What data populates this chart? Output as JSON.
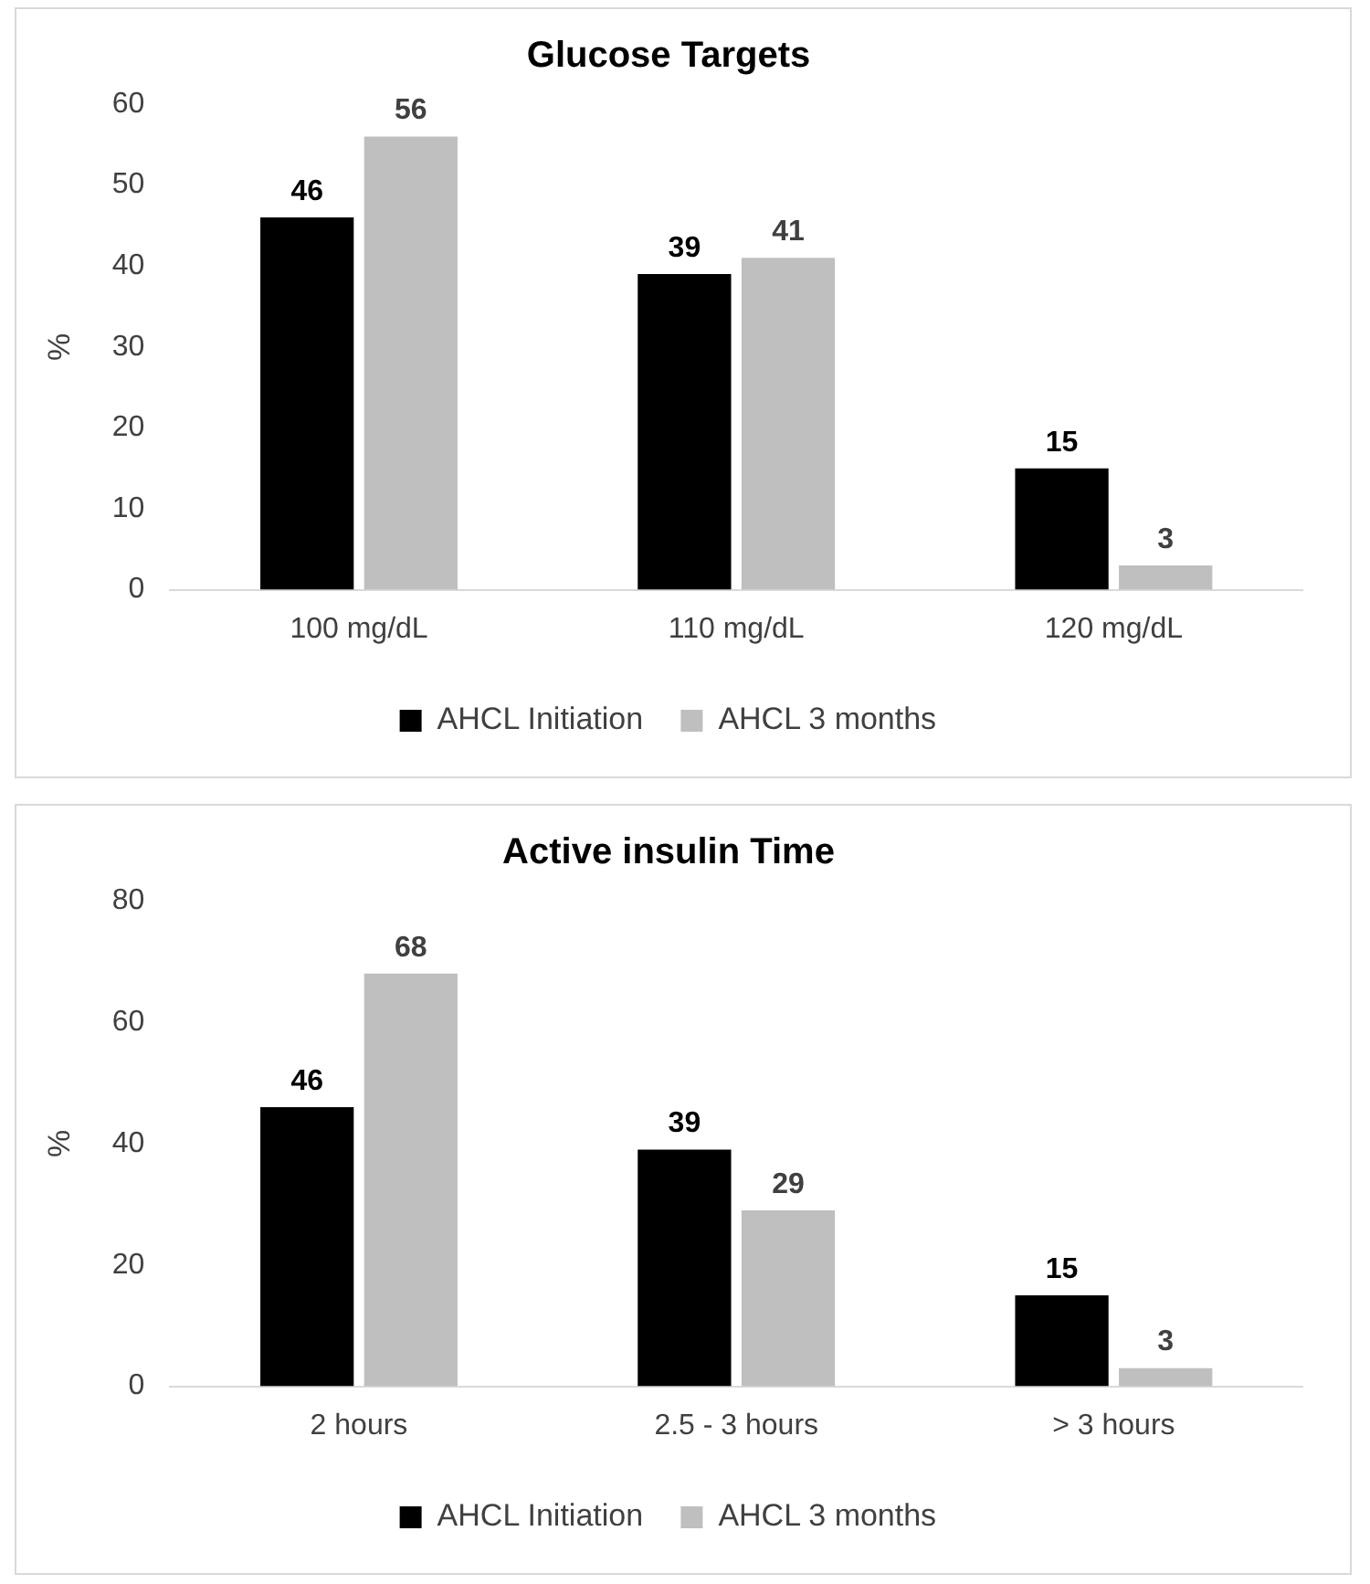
{
  "chart_data": [
    {
      "type": "bar",
      "title": "Glucose Targets",
      "ylabel": "%",
      "categories": [
        "100 mg/dL",
        "110 mg/dL",
        "120 mg/dL"
      ],
      "series": [
        {
          "name": "AHCL Initiation",
          "color": "#000000",
          "values": [
            46,
            39,
            15
          ]
        },
        {
          "name": "AHCL 3 months",
          "color": "#bfbfbf",
          "values": [
            56,
            41,
            3
          ]
        }
      ],
      "ylim": [
        0,
        60
      ],
      "yticks": [
        0,
        10,
        20,
        30,
        40,
        50,
        60
      ],
      "grid": false,
      "legend": "bottom",
      "data_labels": true
    },
    {
      "type": "bar",
      "title": "Active insulin Time",
      "ylabel": "%",
      "categories": [
        "2 hours",
        "2.5 - 3 hours",
        "> 3 hours"
      ],
      "series": [
        {
          "name": "AHCL Initiation",
          "color": "#000000",
          "values": [
            46,
            39,
            15
          ]
        },
        {
          "name": "AHCL 3 months",
          "color": "#bfbfbf",
          "values": [
            68,
            29,
            3
          ]
        }
      ],
      "ylim": [
        0,
        80
      ],
      "yticks": [
        0,
        20,
        40,
        60,
        80
      ],
      "grid": false,
      "legend": "bottom",
      "data_labels": true
    }
  ]
}
